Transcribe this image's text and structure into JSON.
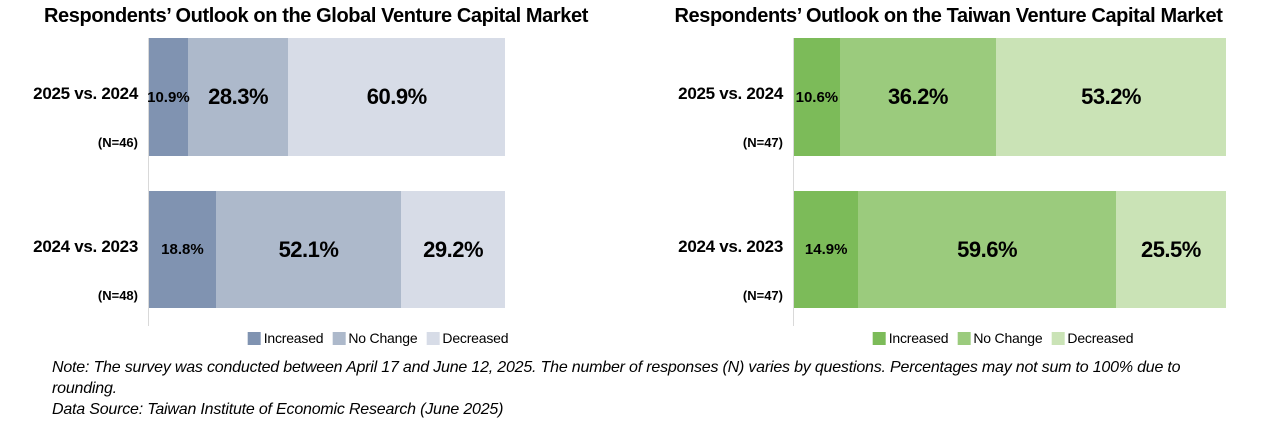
{
  "chart_data": [
    {
      "type": "bar",
      "orientation": "horizontal-stacked",
      "title": "Respondents’ Outlook on the Global Venture Capital Market",
      "legend": [
        "Increased",
        "No Change",
        "Decreased"
      ],
      "legend_position": "bottom",
      "colors": [
        "#8093B1",
        "#ADB9CB",
        "#D7DCE7"
      ],
      "axis_color": "#D9D9D9",
      "xlim": [
        0,
        100
      ],
      "rows": [
        {
          "category": "2025 vs. 2024",
          "n": "(N=46)",
          "values": [
            10.9,
            28.3,
            60.9
          ],
          "labels": [
            "10.9%",
            "28.3%",
            "60.9%"
          ]
        },
        {
          "category": "2024 vs. 2023",
          "n": "(N=48)",
          "values": [
            18.8,
            52.1,
            29.2
          ],
          "labels": [
            "18.8%",
            "52.1%",
            "29.2%"
          ]
        }
      ]
    },
    {
      "type": "bar",
      "orientation": "horizontal-stacked",
      "title": "Respondents’ Outlook on the Taiwan Venture Capital Market",
      "legend": [
        "Increased",
        "No Change",
        "Decreased"
      ],
      "legend_position": "bottom",
      "colors": [
        "#7CBB59",
        "#9BCB7D",
        "#CAE3B6"
      ],
      "axis_color": "#D9D9D9",
      "xlim": [
        0,
        100
      ],
      "rows": [
        {
          "category": "2025 vs. 2024",
          "n": "(N=47)",
          "values": [
            10.6,
            36.2,
            53.2
          ],
          "labels": [
            "10.6%",
            "36.2%",
            "53.2%"
          ]
        },
        {
          "category": "2024 vs. 2023",
          "n": "(N=47)",
          "values": [
            14.9,
            59.6,
            25.5
          ],
          "labels": [
            "14.9%",
            "59.6%",
            "25.5%"
          ]
        }
      ]
    }
  ],
  "footnote": {
    "note": "Note: The survey was conducted between April 17 and  June 12, 2025. The number of responses (N) varies by questions. Percentages may not sum to 100% due to rounding.",
    "source": "Data Source: Taiwan Institute of Economic Research (June 2025)"
  }
}
